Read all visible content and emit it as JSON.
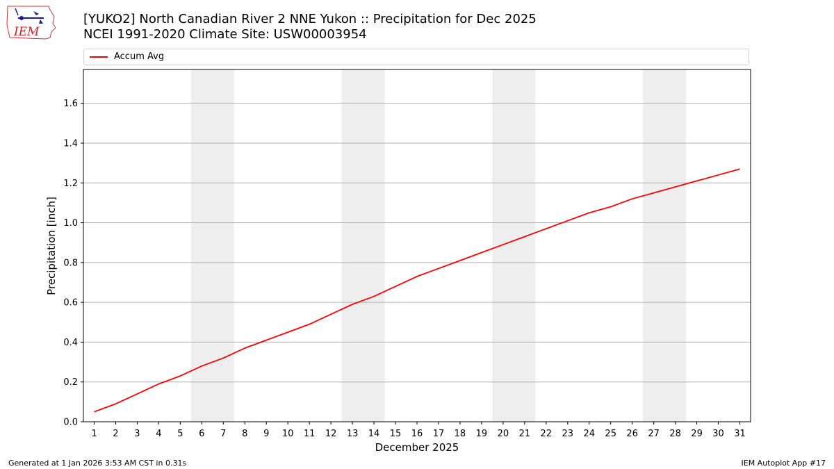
{
  "logo": {
    "text": "IEM"
  },
  "title_line1": "[YUKO2] North Canadian River 2 NNE Yukon :: Precipitation for Dec 2025",
  "title_line2": "NCEI 1991-2020 Climate Site: USW00003954",
  "footer": {
    "left": "Generated at 1 Jan 2026 3:53 AM CST in 0.31s",
    "right": "IEM Autoplot App #17"
  },
  "colors": {
    "line": "#ff0000",
    "weekend_shade": "#eeeeee",
    "grid": "#b0b0b0"
  },
  "chart_data": {
    "type": "line",
    "title": "[YUKO2] North Canadian River 2 NNE Yukon :: Precipitation for Dec 2025",
    "subtitle": "NCEI 1991-2020 Climate Site: USW00003954",
    "xlabel": "December 2025",
    "ylabel": "Precipitation [inch]",
    "x": [
      1,
      2,
      3,
      4,
      5,
      6,
      7,
      8,
      9,
      10,
      11,
      12,
      13,
      14,
      15,
      16,
      17,
      18,
      19,
      20,
      21,
      22,
      23,
      24,
      25,
      26,
      27,
      28,
      29,
      30,
      31
    ],
    "x_tick_labels": [
      "1",
      "2",
      "3",
      "4",
      "5",
      "6",
      "7",
      "8",
      "9",
      "10",
      "11",
      "12",
      "13",
      "14",
      "15",
      "16",
      "17",
      "18",
      "19",
      "20",
      "21",
      "22",
      "23",
      "24",
      "25",
      "26",
      "27",
      "28",
      "29",
      "30",
      "31"
    ],
    "xlim": [
      0.5,
      31.5
    ],
    "ylim": [
      0,
      1.77
    ],
    "y_ticks": [
      0.0,
      0.2,
      0.4,
      0.6,
      0.8,
      1.0,
      1.2,
      1.4,
      1.6
    ],
    "y_tick_labels": [
      "0.0",
      "0.2",
      "0.4",
      "0.6",
      "0.8",
      "1.0",
      "1.2",
      "1.4",
      "1.6"
    ],
    "grid": "y",
    "legend": "top",
    "series": [
      {
        "name": "Accum Avg",
        "values": [
          0.05,
          0.09,
          0.14,
          0.19,
          0.23,
          0.28,
          0.32,
          0.37,
          0.41,
          0.45,
          0.49,
          0.54,
          0.59,
          0.63,
          0.68,
          0.73,
          0.77,
          0.81,
          0.85,
          0.89,
          0.93,
          0.97,
          1.01,
          1.05,
          1.08,
          1.12,
          1.15,
          1.18,
          1.21,
          1.24,
          1.27
        ]
      }
    ],
    "weekend_shading": [
      [
        6,
        7
      ],
      [
        13,
        14
      ],
      [
        20,
        21
      ],
      [
        27,
        28
      ]
    ]
  }
}
